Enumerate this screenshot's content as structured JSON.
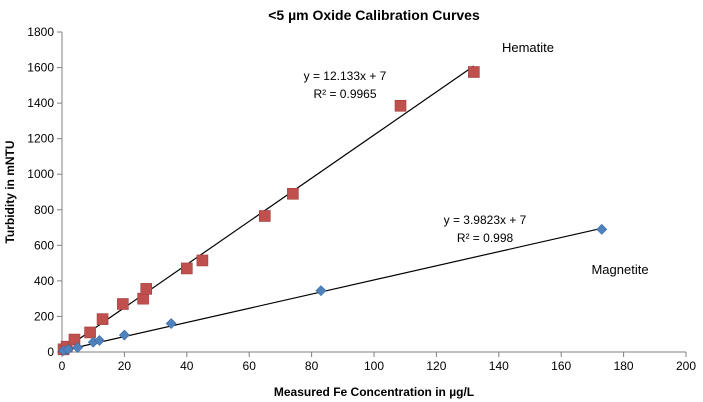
{
  "chart_data": {
    "type": "scatter",
    "title": "<5 µm Oxide Calibration Curves",
    "xlabel": "Measured Fe Concentration in µg/L",
    "ylabel": "Turbidity in mNTU",
    "xlim": [
      0,
      200
    ],
    "ylim": [
      0,
      1800
    ],
    "xticks": [
      "0",
      "20",
      "40",
      "60",
      "80",
      "100",
      "120",
      "140",
      "160",
      "180",
      "200"
    ],
    "yticks": [
      "0",
      "200",
      "400",
      "600",
      "800",
      "1000",
      "1200",
      "1400",
      "1600",
      "1800"
    ],
    "grid": "none",
    "series": [
      {
        "name": "Hematite",
        "marker": "square",
        "color": "#C0504D",
        "x": [
          0.5,
          1.5,
          4,
          9,
          13,
          19.5,
          26,
          27,
          40,
          45,
          65,
          74,
          108.5,
          132
        ],
        "y": [
          15,
          30,
          70,
          110,
          185,
          270,
          300,
          355,
          470,
          515,
          765,
          890,
          1385,
          1575
        ],
        "trendline": {
          "slope": 12.133,
          "intercept": 7,
          "x_range": [
            0,
            132
          ]
        },
        "equation": "y = 12.133x + 7",
        "r2": "R² = 0.9965"
      },
      {
        "name": "Magnetite",
        "marker": "diamond",
        "color": "#4F81BD",
        "x": [
          0.5,
          2,
          5,
          10,
          12,
          20,
          35,
          83,
          173
        ],
        "y": [
          8,
          15,
          25,
          55,
          65,
          95,
          160,
          345,
          690
        ],
        "trendline": {
          "slope": 3.9823,
          "intercept": 7,
          "x_range": [
            0,
            173
          ]
        },
        "equation": "y = 3.9823x + 7",
        "r2": "R² = 0.998"
      }
    ]
  }
}
